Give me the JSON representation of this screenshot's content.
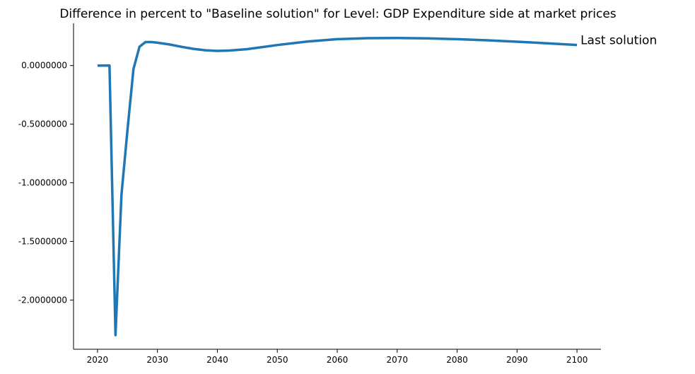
{
  "chart_data": {
    "type": "line",
    "title": "Difference in percent to \"Baseline solution\" for Level: GDP Expenditure side at market prices",
    "xlabel": "",
    "ylabel": "",
    "xlim": [
      2016,
      2104
    ],
    "ylim": [
      -2.42,
      0.36
    ],
    "x_ticks": [
      2020,
      2030,
      2040,
      2050,
      2060,
      2070,
      2080,
      2090,
      2100
    ],
    "x_tick_labels": [
      "2020",
      "2030",
      "2040",
      "2050",
      "2060",
      "2070",
      "2080",
      "2090",
      "2100"
    ],
    "y_ticks": [
      0,
      -0.5,
      -1,
      -1.5,
      -2
    ],
    "y_tick_labels": [
      "0.0000000",
      "-0.5000000",
      "-1.0000000",
      "-1.5000000",
      "-2.0000000"
    ],
    "grid": false,
    "series": [
      {
        "name": "Last solution",
        "color": "#1f77b4",
        "x": [
          2020,
          2021,
          2022,
          2023,
          2024,
          2025,
          2026,
          2027,
          2028,
          2029,
          2030,
          2032,
          2034,
          2036,
          2038,
          2040,
          2042,
          2045,
          2050,
          2055,
          2060,
          2065,
          2070,
          2075,
          2080,
          2085,
          2090,
          2095,
          2100
        ],
        "values": [
          0.0,
          0.0,
          0.0,
          -2.3,
          -1.1,
          -0.55,
          -0.03,
          0.16,
          0.2,
          0.2,
          0.195,
          0.18,
          0.16,
          0.142,
          0.13,
          0.125,
          0.128,
          0.14,
          0.175,
          0.205,
          0.225,
          0.233,
          0.235,
          0.232,
          0.225,
          0.215,
          0.203,
          0.19,
          0.175
        ]
      }
    ]
  }
}
